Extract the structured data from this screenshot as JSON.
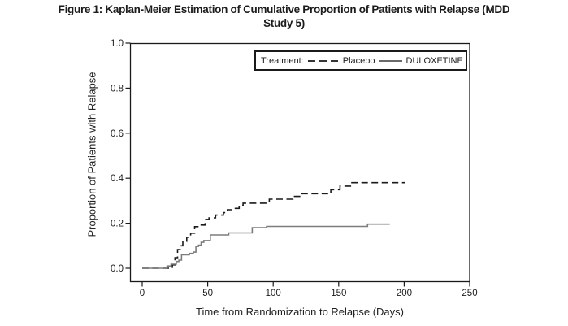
{
  "figure": {
    "title": "Figure 1: Kaplan-Meier Estimation of Cumulative Proportion of Patients with Relapse (MDD Study 5)",
    "title_lines": [
      "Figure 1: Kaplan-Meier Estimation of Cumulative Proportion of Patients with Relapse (MDD",
      "Study 5)"
    ]
  },
  "chart_data": {
    "type": "line",
    "subtype": "kaplan_meier_step",
    "title": "Figure 1: Kaplan-Meier Estimation of Cumulative Proportion of Patients with Relapse (MDD Study 5)",
    "xlabel": "Time from Randomization to Relapse (Days)",
    "ylabel": "Proportion of Patients with Relapse",
    "xlim": [
      0,
      250
    ],
    "ylim": [
      0.0,
      1.0
    ],
    "xticks": [
      "0",
      "50",
      "100",
      "150",
      "200",
      "250"
    ],
    "yticks": [
      "0.0",
      "0.2",
      "0.4",
      "0.6",
      "0.8",
      "1.0"
    ],
    "grid": false,
    "legend": {
      "title": "Treatment:",
      "position": "top-right",
      "entries": [
        {
          "label": "Placebo",
          "line_style": "dashed",
          "color": "#1a1a1a"
        },
        {
          "label": "DULOXETINE",
          "line_style": "solid",
          "color": "#7d7d7d"
        }
      ]
    },
    "series": [
      {
        "name": "Placebo",
        "line_style": "dashed",
        "color": "#1a1a1a",
        "points_day_proportion": [
          [
            0,
            0
          ],
          [
            23,
            0.015
          ],
          [
            25,
            0.047
          ],
          [
            27,
            0.083
          ],
          [
            29,
            0.1
          ],
          [
            31,
            0.12
          ],
          [
            34,
            0.138
          ],
          [
            37,
            0.156
          ],
          [
            40,
            0.185
          ],
          [
            43,
            0.192
          ],
          [
            48,
            0.217
          ],
          [
            51,
            0.224
          ],
          [
            56,
            0.236
          ],
          [
            62,
            0.247
          ],
          [
            65,
            0.26
          ],
          [
            70,
            0.266
          ],
          [
            74,
            0.278
          ],
          [
            77,
            0.289
          ],
          [
            97,
            0.307
          ],
          [
            115,
            0.319
          ],
          [
            121,
            0.331
          ],
          [
            144,
            0.349
          ],
          [
            151,
            0.365
          ],
          [
            159,
            0.38
          ],
          [
            201,
            0.38
          ]
        ]
      },
      {
        "name": "DULOXETINE",
        "line_style": "solid",
        "color": "#7d7d7d",
        "points_day_proportion": [
          [
            0,
            0
          ],
          [
            19,
            0.01
          ],
          [
            22,
            0.018
          ],
          [
            26,
            0.03
          ],
          [
            28,
            0.036
          ],
          [
            30,
            0.06
          ],
          [
            36,
            0.066
          ],
          [
            39,
            0.072
          ],
          [
            41,
            0.097
          ],
          [
            43,
            0.103
          ],
          [
            45,
            0.115
          ],
          [
            47,
            0.123
          ],
          [
            52,
            0.148
          ],
          [
            66,
            0.157
          ],
          [
            84,
            0.18
          ],
          [
            95,
            0.186
          ],
          [
            172,
            0.196
          ],
          [
            189,
            0.196
          ]
        ]
      }
    ]
  }
}
